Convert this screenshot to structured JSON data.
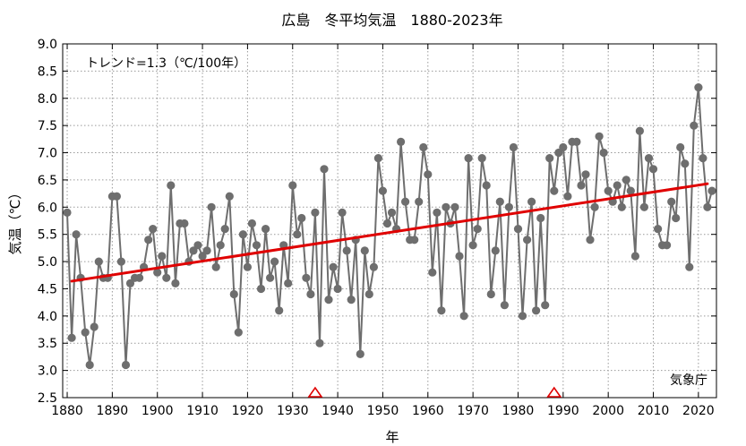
{
  "chart_data": {
    "type": "line",
    "title": "広島　冬平均気温　1880-2023年",
    "xlabel": "年",
    "ylabel": "気温（℃）",
    "xlim": [
      1879,
      2024
    ],
    "ylim": [
      2.5,
      9.0
    ],
    "x_ticks": [
      1880,
      1890,
      1900,
      1910,
      1920,
      1930,
      1940,
      1950,
      1960,
      1970,
      1980,
      1990,
      2000,
      2010,
      2020
    ],
    "y_ticks": [
      2.5,
      3.0,
      3.5,
      4.0,
      4.5,
      5.0,
      5.5,
      6.0,
      6.5,
      7.0,
      7.5,
      8.0,
      8.5,
      9.0
    ],
    "y_tick_labels": [
      "2.5",
      "3.0",
      "3.5",
      "4.0",
      "4.5",
      "5.0",
      "5.5",
      "6.0",
      "6.5",
      "7.0",
      "7.5",
      "8.0",
      "8.5",
      "9.0"
    ],
    "grid": true,
    "series": [
      {
        "color": "#6e6e6e",
        "x": [
          1880,
          1881,
          1882,
          1883,
          1884,
          1885,
          1886,
          1887,
          1888,
          1889,
          1890,
          1891,
          1892,
          1893,
          1894,
          1895,
          1896,
          1897,
          1898,
          1899,
          1900,
          1901,
          1902,
          1903,
          1904,
          1905,
          1906,
          1907,
          1908,
          1909,
          1910,
          1911,
          1912,
          1913,
          1914,
          1915,
          1916,
          1917,
          1918,
          1919,
          1920,
          1921,
          1922,
          1923,
          1924,
          1925,
          1926,
          1927,
          1928,
          1929,
          1930,
          1931,
          1932,
          1933,
          1934,
          1935,
          1936,
          1937,
          1938,
          1939,
          1940,
          1941,
          1942,
          1943,
          1944,
          1945,
          1946,
          1947,
          1948,
          1949,
          1950,
          1951,
          1952,
          1953,
          1954,
          1955,
          1956,
          1957,
          1958,
          1959,
          1960,
          1961,
          1962,
          1963,
          1964,
          1965,
          1966,
          1967,
          1968,
          1969,
          1970,
          1971,
          1972,
          1973,
          1974,
          1975,
          1976,
          1977,
          1978,
          1979,
          1980,
          1981,
          1982,
          1983,
          1984,
          1985,
          1986,
          1987,
          1988,
          1989,
          1990,
          1991,
          1992,
          1993,
          1994,
          1995,
          1996,
          1997,
          1998,
          1999,
          2000,
          2001,
          2002,
          2003,
          2004,
          2005,
          2006,
          2007,
          2008,
          2009,
          2010,
          2011,
          2012,
          2013,
          2014,
          2015,
          2016,
          2017,
          2018,
          2019,
          2020,
          2021,
          2022,
          2023
        ],
        "y": [
          5.9,
          3.6,
          5.5,
          4.7,
          3.7,
          3.1,
          3.8,
          5.0,
          4.7,
          4.7,
          6.2,
          6.2,
          5.0,
          3.1,
          4.6,
          4.7,
          4.7,
          4.9,
          5.4,
          5.6,
          4.8,
          5.1,
          4.7,
          6.4,
          4.6,
          5.7,
          5.7,
          5.0,
          5.2,
          5.3,
          5.1,
          5.2,
          6.0,
          4.9,
          5.3,
          5.6,
          6.2,
          4.4,
          3.7,
          5.5,
          4.9,
          5.7,
          5.3,
          4.5,
          5.6,
          4.7,
          5.0,
          4.1,
          5.3,
          4.6,
          6.4,
          5.5,
          5.8,
          4.7,
          4.4,
          5.9,
          3.5,
          6.7,
          4.3,
          4.9,
          4.5,
          5.9,
          5.2,
          4.3,
          5.4,
          3.3,
          5.2,
          4.4,
          4.9,
          6.9,
          6.3,
          5.7,
          5.9,
          5.6,
          7.2,
          6.1,
          5.4,
          5.4,
          6.1,
          7.1,
          6.6,
          4.8,
          5.9,
          4.1,
          6.0,
          5.7,
          6.0,
          5.1,
          4.0,
          6.9,
          5.3,
          5.6,
          6.9,
          6.4,
          4.4,
          5.2,
          6.1,
          4.2,
          6.0,
          7.1,
          5.6,
          4.0,
          5.4,
          6.1,
          4.1,
          5.8,
          4.2,
          6.9,
          6.3,
          7.0,
          7.1,
          6.2,
          7.2,
          7.2,
          6.4,
          6.6,
          5.4,
          6.0,
          7.3,
          7.0,
          6.3,
          6.1,
          6.4,
          6.0,
          6.5,
          6.3,
          5.1,
          7.4,
          6.0,
          6.9,
          6.7,
          5.6,
          5.3,
          5.3,
          6.1,
          5.8,
          7.1,
          6.8,
          4.9,
          7.5,
          8.2,
          6.9,
          6.0,
          6.3
        ]
      }
    ],
    "trend": {
      "color": "#e00000",
      "x": [
        1881,
        2022
      ],
      "y": [
        4.64,
        6.43
      ],
      "label": "トレンド=1.3（℃/100年）"
    },
    "markers": {
      "type": "triangle",
      "color": "#e00000",
      "x": [
        1935,
        1988
      ]
    },
    "source_note": "気象庁"
  }
}
